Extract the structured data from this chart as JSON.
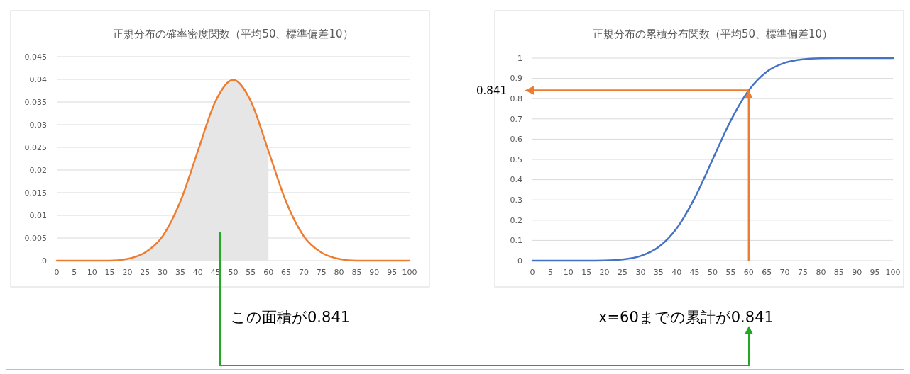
{
  "chart_data": [
    {
      "type": "line",
      "title": "正規分布の確率密度関数（平均50、標準偏差10）",
      "grid": "y",
      "xlim": [
        0,
        100
      ],
      "xticks": [
        0,
        5,
        10,
        15,
        20,
        25,
        30,
        35,
        40,
        45,
        50,
        55,
        60,
        65,
        70,
        75,
        80,
        85,
        90,
        95,
        100
      ],
      "ylim": [
        0,
        0.045
      ],
      "yticks": [
        0,
        0.005,
        0.01,
        0.015,
        0.02,
        0.025,
        0.03,
        0.035,
        0.04,
        0.045
      ],
      "series": [
        {
          "type": "area",
          "color": "#e7e6e6",
          "x": [
            0,
            5,
            10,
            15,
            20,
            25,
            30,
            35,
            40,
            45,
            50,
            55,
            60
          ],
          "values": [
            0,
            0,
            0,
            0,
            0.0004,
            0.0018,
            0.0054,
            0.013,
            0.0242,
            0.0352,
            0.0399,
            0.0352,
            0.0242
          ]
        },
        {
          "color": "#ed7d31",
          "x": [
            0,
            5,
            10,
            15,
            20,
            25,
            30,
            35,
            40,
            45,
            50,
            55,
            60,
            65,
            70,
            75,
            80,
            85,
            90,
            95,
            100
          ],
          "values": [
            0,
            0,
            0,
            0,
            0.0004,
            0.0018,
            0.0054,
            0.013,
            0.0242,
            0.0352,
            0.0399,
            0.0352,
            0.0242,
            0.013,
            0.0054,
            0.0018,
            0.0004,
            0,
            0,
            0,
            0
          ]
        }
      ],
      "annotations": [
        "この面積が0.841"
      ]
    },
    {
      "type": "line",
      "title": "正規分布の累積分布関数（平均50、標準偏差10）",
      "grid": "y",
      "xlim": [
        0,
        100
      ],
      "xticks": [
        0,
        5,
        10,
        15,
        20,
        25,
        30,
        35,
        40,
        45,
        50,
        55,
        60,
        65,
        70,
        75,
        80,
        85,
        90,
        95,
        100
      ],
      "ylim": [
        0,
        1
      ],
      "yticks": [
        0,
        0.1,
        0.2,
        0.3,
        0.4,
        0.5,
        0.6,
        0.7,
        0.8,
        0.9,
        1
      ],
      "series": [
        {
          "color": "#4472c4",
          "x": [
            0,
            5,
            10,
            15,
            20,
            25,
            30,
            35,
            40,
            45,
            50,
            55,
            60,
            65,
            70,
            75,
            80,
            85,
            90,
            95,
            100
          ],
          "values": [
            0,
            0,
            0,
            0,
            0.001,
            0.006,
            0.023,
            0.067,
            0.159,
            0.309,
            0.5,
            0.691,
            0.841,
            0.933,
            0.977,
            0.994,
            0.999,
            1,
            1,
            1,
            1
          ]
        }
      ],
      "ref_lines": [
        {
          "axis": "y",
          "value": 0.841,
          "label": "0.841",
          "color": "#ed7d31"
        },
        {
          "axis": "x",
          "value": 60,
          "color": "#ed7d31"
        }
      ],
      "annotations": [
        "x=60までの累計が0.841"
      ]
    }
  ]
}
